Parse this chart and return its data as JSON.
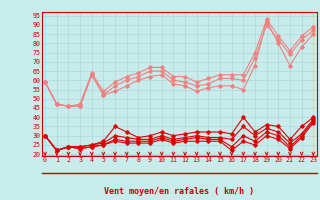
{
  "xlabel": "Vent moyen/en rafales ( km/h )",
  "background_color": "#c8ecec",
  "grid_color": "#aadddd",
  "x_ticks": [
    0,
    1,
    2,
    3,
    4,
    5,
    6,
    7,
    8,
    9,
    10,
    11,
    12,
    13,
    14,
    15,
    16,
    17,
    18,
    19,
    20,
    21,
    22,
    23
  ],
  "y_ticks": [
    20,
    25,
    30,
    35,
    40,
    45,
    50,
    55,
    60,
    65,
    70,
    75,
    80,
    85,
    90,
    95
  ],
  "ylim": [
    19,
    97
  ],
  "xlim": [
    -0.3,
    23.3
  ],
  "series_light": [
    [
      59,
      47,
      46,
      46,
      63,
      52,
      54,
      57,
      60,
      62,
      63,
      58,
      57,
      54,
      56,
      57,
      57,
      55,
      68,
      92,
      80,
      68,
      78,
      85
    ],
    [
      59,
      47,
      46,
      46,
      63,
      52,
      57,
      60,
      62,
      65,
      65,
      60,
      59,
      57,
      58,
      61,
      61,
      60,
      72,
      90,
      82,
      74,
      82,
      87
    ],
    [
      59,
      47,
      46,
      47,
      64,
      54,
      59,
      62,
      64,
      67,
      67,
      62,
      62,
      59,
      61,
      63,
      63,
      63,
      75,
      93,
      84,
      76,
      84,
      89
    ]
  ],
  "series_dark": [
    [
      30,
      22,
      24,
      24,
      25,
      27,
      35,
      32,
      29,
      30,
      32,
      30,
      31,
      32,
      32,
      32,
      31,
      40,
      32,
      36,
      35,
      28,
      35,
      40
    ],
    [
      30,
      22,
      24,
      24,
      25,
      26,
      30,
      29,
      28,
      28,
      30,
      28,
      29,
      30,
      29,
      29,
      28,
      35,
      30,
      34,
      32,
      26,
      31,
      39
    ],
    [
      30,
      22,
      24,
      23,
      24,
      25,
      28,
      27,
      27,
      27,
      29,
      27,
      28,
      29,
      28,
      28,
      24,
      30,
      27,
      32,
      30,
      24,
      30,
      38
    ],
    [
      30,
      22,
      24,
      23,
      24,
      25,
      27,
      26,
      26,
      26,
      28,
      26,
      27,
      27,
      27,
      27,
      22,
      27,
      25,
      30,
      28,
      23,
      29,
      37
    ]
  ],
  "light_color": "#f08080",
  "dark_color": "#dd0000",
  "marker_size": 1.8,
  "line_width": 0.8,
  "tick_fontsize": 4.8,
  "xlabel_fontsize": 6.0
}
